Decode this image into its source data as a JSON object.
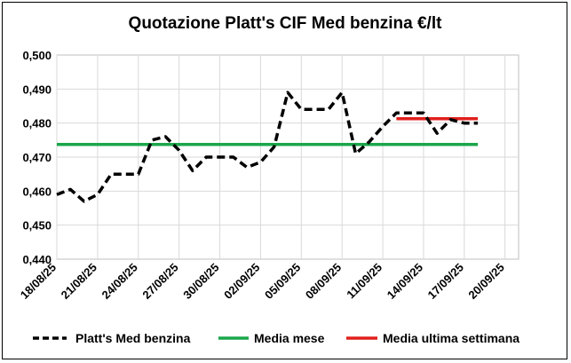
{
  "chart_data": {
    "type": "line",
    "title": "Quotazione Platt's CIF Med benzina €/lt",
    "xlabel": "",
    "ylabel": "",
    "ylim": [
      0.44,
      0.5
    ],
    "y_ticks": [
      "0,440",
      "0,450",
      "0,460",
      "0,470",
      "0,480",
      "0,490",
      "0,500"
    ],
    "x_ticks": [
      "18/08/25",
      "21/08/25",
      "24/08/25",
      "27/08/25",
      "30/08/25",
      "02/09/25",
      "05/09/25",
      "08/09/25",
      "11/09/25",
      "14/09/25",
      "17/09/25",
      "20/09/25"
    ],
    "grid": true,
    "legend_position": "bottom",
    "series": [
      {
        "name": "Platt's Med benzina",
        "style": "dashed",
        "color": "#000000",
        "points": [
          {
            "x": "18/08/25",
            "y": 0.459
          },
          {
            "x": "19/08/25",
            "y": 0.4605
          },
          {
            "x": "20/08/25",
            "y": 0.457
          },
          {
            "x": "21/08/25",
            "y": 0.459
          },
          {
            "x": "22/08/25",
            "y": 0.465
          },
          {
            "x": "24/08/25",
            "y": 0.465
          },
          {
            "x": "25/08/25",
            "y": 0.475
          },
          {
            "x": "26/08/25",
            "y": 0.476
          },
          {
            "x": "27/08/25",
            "y": 0.472
          },
          {
            "x": "28/08/25",
            "y": 0.466
          },
          {
            "x": "29/08/25",
            "y": 0.47
          },
          {
            "x": "31/08/25",
            "y": 0.47
          },
          {
            "x": "01/09/25",
            "y": 0.467
          },
          {
            "x": "02/09/25",
            "y": 0.4685
          },
          {
            "x": "03/09/25",
            "y": 0.473
          },
          {
            "x": "04/09/25",
            "y": 0.489
          },
          {
            "x": "05/09/25",
            "y": 0.484
          },
          {
            "x": "07/09/25",
            "y": 0.484
          },
          {
            "x": "08/09/25",
            "y": 0.489
          },
          {
            "x": "09/09/25",
            "y": 0.471
          },
          {
            "x": "10/09/25",
            "y": 0.4745
          },
          {
            "x": "11/09/25",
            "y": 0.479
          },
          {
            "x": "12/09/25",
            "y": 0.483
          },
          {
            "x": "14/09/25",
            "y": 0.483
          },
          {
            "x": "15/09/25",
            "y": 0.477
          },
          {
            "x": "16/09/25",
            "y": 0.481
          },
          {
            "x": "17/09/25",
            "y": 0.48
          },
          {
            "x": "18/09/25",
            "y": 0.48
          }
        ]
      },
      {
        "name": "Media mese",
        "style": "solid",
        "color": "#1aa64a",
        "points": [
          {
            "x": "18/08/25",
            "y": 0.4737
          },
          {
            "x": "18/09/25",
            "y": 0.4737
          }
        ]
      },
      {
        "name": "Media ultima settimana",
        "style": "solid",
        "color": "#e0201c",
        "points": [
          {
            "x": "12/09/25",
            "y": 0.4813
          },
          {
            "x": "18/09/25",
            "y": 0.4813
          }
        ]
      }
    ]
  }
}
